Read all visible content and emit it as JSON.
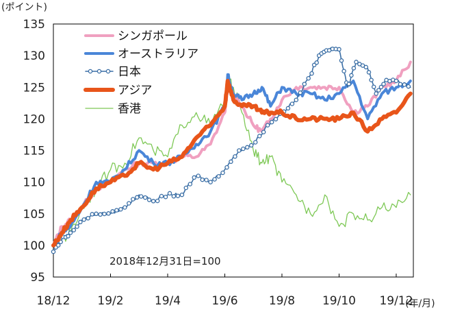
{
  "chart_data": {
    "type": "line",
    "yunit": "(ポイント)",
    "xunit": "(年/月)",
    "note": "2018年12月31日=100",
    "ylim": [
      95,
      135
    ],
    "yticks": [
      95,
      100,
      105,
      110,
      115,
      120,
      125,
      130,
      135
    ],
    "ytick_labels": [
      "95",
      "100",
      "105",
      "110",
      "115",
      "120",
      "125",
      "130",
      "135"
    ],
    "xlim": [
      0,
      12.6
    ],
    "xticks": [
      0,
      2,
      4,
      6,
      8,
      10,
      12
    ],
    "xtick_labels": [
      "18/12",
      "19/2",
      "19/4",
      "19/6",
      "19/8",
      "19/10",
      "19/12"
    ],
    "legend_position": "top-left",
    "series": [
      {
        "name": "シンガポール",
        "color": "#f0a0c0",
        "style": "thick",
        "x": [
          0,
          0.3,
          0.6,
          1,
          1.5,
          2,
          2.5,
          3,
          3.5,
          4,
          4.5,
          5,
          5.5,
          6,
          6.1,
          6.3,
          6.6,
          7,
          7.3,
          7.6,
          8,
          8.5,
          9,
          9.5,
          10,
          10.5,
          11,
          11.5,
          12,
          12.5
        ],
        "y": [
          100,
          103,
          104,
          106,
          109,
          110,
          112,
          113,
          113,
          113,
          114,
          114,
          116,
          121,
          125,
          124,
          122,
          119,
          118,
          120,
          123,
          125,
          125,
          125,
          125,
          121,
          122,
          125,
          126,
          129
        ]
      },
      {
        "name": "オーストラリア",
        "color": "#4a86d8",
        "style": "thick",
        "x": [
          0,
          0.3,
          0.6,
          1,
          1.5,
          2,
          2.5,
          3,
          3.5,
          4,
          4.5,
          5,
          5.5,
          6,
          6.1,
          6.3,
          6.6,
          7,
          7.3,
          7.6,
          8,
          8.5,
          9,
          9.5,
          10,
          10.5,
          11,
          11.5,
          12,
          12.5
        ],
        "y": [
          100,
          102,
          103,
          106,
          110,
          110,
          112,
          115,
          113,
          113,
          114,
          116,
          118,
          122,
          127,
          124,
          123,
          124,
          125,
          122,
          125,
          124,
          124,
          123,
          124,
          126,
          120,
          124,
          125,
          126
        ]
      },
      {
        "name": "日本",
        "color": "#3a6ea5",
        "style": "markers",
        "x": [
          0,
          0.3,
          0.6,
          1,
          1.5,
          2,
          2.5,
          3,
          3.5,
          4,
          4.5,
          5,
          5.5,
          6,
          6.5,
          7,
          7.5,
          8,
          8.5,
          9,
          9.3,
          9.6,
          10,
          10.3,
          10.6,
          11,
          11.3,
          11.6,
          12,
          12.5
        ],
        "y": [
          99,
          101,
          102,
          104,
          105,
          105,
          106,
          108,
          107,
          108,
          108,
          111,
          110,
          112,
          115,
          116,
          119,
          121,
          123,
          127,
          130,
          131,
          131,
          125,
          129,
          128,
          124,
          126,
          126,
          125
        ]
      },
      {
        "name": "アジア",
        "color": "#e8551a",
        "style": "thicker",
        "x": [
          0,
          0.3,
          0.6,
          1,
          1.5,
          2,
          2.5,
          3,
          3.5,
          4,
          4.5,
          5,
          5.5,
          6,
          6.1,
          6.3,
          6.6,
          7,
          7.3,
          7.6,
          8,
          8.5,
          9,
          9.5,
          10,
          10.5,
          11,
          11.5,
          12,
          12.5
        ],
        "y": [
          100,
          102,
          104,
          106,
          109,
          110,
          111,
          113,
          112,
          113,
          114,
          117,
          119,
          122,
          126,
          123,
          122,
          122,
          121,
          121,
          121,
          120,
          120,
          120,
          120,
          121,
          118,
          120,
          121,
          124
        ]
      },
      {
        "name": "香港",
        "color": "#7dc855",
        "style": "thin",
        "x": [
          0,
          0.3,
          0.6,
          1,
          1.5,
          2,
          2.5,
          3,
          3.5,
          4,
          4.5,
          5,
          5.5,
          6,
          6.1,
          6.3,
          6.6,
          7,
          7.3,
          7.6,
          8,
          8.5,
          9,
          9.5,
          10,
          10.5,
          11,
          11.5,
          12,
          12.5
        ],
        "y": [
          100,
          101,
          102,
          106,
          109,
          112,
          113,
          117,
          115,
          114,
          119,
          121,
          119,
          123,
          126,
          125,
          121,
          115,
          113,
          114,
          110,
          108,
          105,
          108,
          103,
          105,
          104,
          106,
          106,
          108
        ]
      }
    ]
  }
}
